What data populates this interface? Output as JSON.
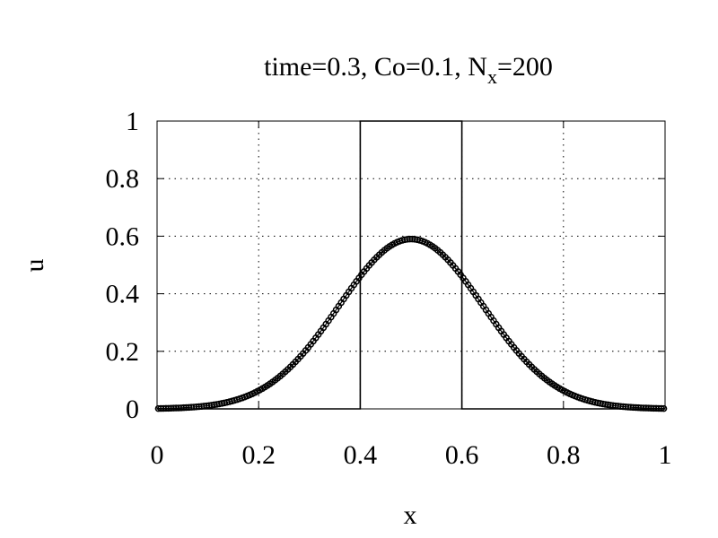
{
  "chart_data": {
    "type": "line",
    "title_parts": {
      "pre": "time=0.3, Co=0.1, N",
      "sub": "x",
      "post": "=200"
    },
    "xlabel": "x",
    "ylabel": "u",
    "xlim": [
      0,
      1
    ],
    "ylim": [
      0,
      1
    ],
    "xticks": [
      0,
      0.2,
      0.4,
      0.6,
      0.8,
      1
    ],
    "xtick_labels": [
      "0",
      "0.2",
      "0.4",
      "0.6",
      "0.8",
      "1"
    ],
    "yticks": [
      0,
      0.2,
      0.4,
      0.6,
      0.8,
      1
    ],
    "ytick_labels": [
      "0",
      "0.2",
      "0.4",
      "0.6",
      "0.8",
      "1"
    ],
    "grid": true,
    "series": [
      {
        "style": "solid-line",
        "x": [
          0,
          0.4,
          0.4,
          0.6,
          0.6,
          1
        ],
        "y": [
          0,
          0,
          1,
          1,
          0,
          0
        ]
      },
      {
        "style": "line-with-circles",
        "gaussian": {
          "peak": 0.59,
          "center": 0.5,
          "sigma": 0.142
        },
        "x_range": [
          0,
          1
        ],
        "points": 200
      }
    ]
  }
}
